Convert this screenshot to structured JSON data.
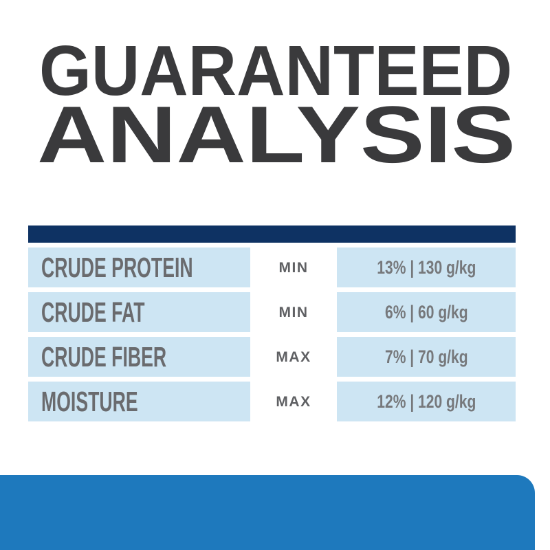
{
  "title": {
    "line1": "GUARANTEED",
    "line2": "ANALYSIS"
  },
  "table": {
    "columns": [
      "nutrient",
      "basis",
      "value"
    ],
    "rows": [
      {
        "nutrient": "CRUDE PROTEIN",
        "basis": "MIN",
        "value": "13% | 130 g/kg"
      },
      {
        "nutrient": "CRUDE FAT",
        "basis": "MIN",
        "value": "6% | 60 g/kg"
      },
      {
        "nutrient": "CRUDE FIBER",
        "basis": "MAX",
        "value": "7% | 70 g/kg"
      },
      {
        "nutrient": "MOISTURE",
        "basis": "MAX",
        "value": "12% | 120 g/kg"
      }
    ]
  },
  "colors": {
    "background": "#ffffff",
    "title_charcoal": "#3a3a3c",
    "navy": "#0e3263",
    "light_blue": "#cde5f3",
    "accent_blue": "#1e79bd",
    "label_gray": "#6a6b6e",
    "basis_gray": "#5f6063",
    "value_gray": "#76787b"
  }
}
